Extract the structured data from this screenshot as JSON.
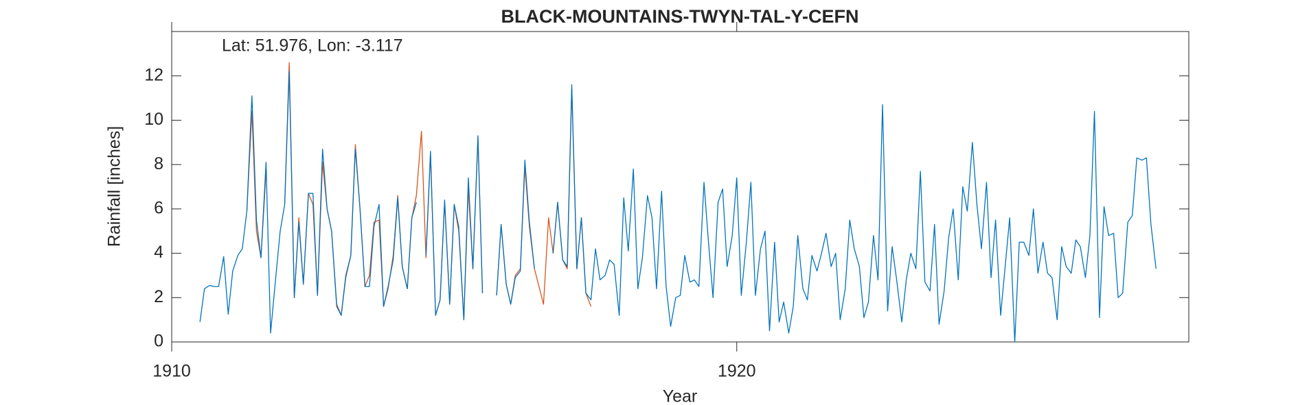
{
  "chart_data": {
    "type": "line",
    "title": "BLACK-MOUNTAINS-TWYN-TAL-Y-CEFN",
    "annotation": "Lat: 51.976, Lon: -3.117",
    "xlabel": "Year",
    "ylabel": "Rainfall [inches]",
    "xlim": [
      1910,
      1928
    ],
    "xticks": [
      1910,
      1920
    ],
    "ylim": [
      0,
      14
    ],
    "yticks": [
      0,
      2,
      4,
      6,
      8,
      10,
      12
    ],
    "series": [
      {
        "color": "#D95319",
        "x": [
          1911,
          1911.08,
          1911.17,
          1911.25,
          1911.33,
          1911.42,
          1911.5,
          1911.58,
          1911.67,
          1911.75,
          1911.83,
          1911.92,
          1912,
          1912.08,
          1912.17,
          1912.25,
          1912.33,
          1912.42,
          1912.5,
          1912.58,
          1912.67,
          1912.75,
          1912.83,
          1912.92,
          1913,
          1913.08,
          1913.17,
          1913.25,
          1913.33,
          1913.42,
          1913.5,
          1913.58,
          1913.67,
          1913.75,
          1913.83,
          1913.92,
          1914,
          1914.08,
          1914.17,
          1914.25,
          1914.33,
          1914.42,
          1914.5,
          1914.58,
          1914.67,
          1914.75,
          1914.83,
          1914.92,
          1915,
          1915.08,
          1915.17,
          1915.25,
          1915.33,
          1915.42,
          1915.5,
          1915.58,
          1915.67,
          1915.75,
          1915.83,
          1915.92,
          1916,
          1916.08,
          1916.17,
          1916.25,
          1916.33,
          1916.42,
          1916.5,
          1916.58,
          1916.67,
          1916.75,
          1916.83,
          1916.92,
          1917,
          1917.08,
          1917.17,
          1917.25,
          1917.33,
          1917.42
        ],
        "values": [
          null,
          null,
          null,
          null,
          5.9,
          10.4,
          5.0,
          3.8,
          7.7,
          null,
          null,
          null,
          6.2,
          12.6,
          2.0,
          5.6,
          2.6,
          6.7,
          6.2,
          2.1,
          8.1,
          6.0,
          5.0,
          1.7,
          1.2,
          3.0,
          3.9,
          8.9,
          6.1,
          2.5,
          3.0,
          5.4,
          5.5,
          1.6,
          2.4,
          3.9,
          6.6,
          3.4,
          2.4,
          5.6,
          6.6,
          9.5,
          3.8,
          8.5,
          1.2,
          1.9,
          6.3,
          1.7,
          6.2,
          5.0,
          1.0,
          6.9,
          3.3,
          9.2,
          2.2,
          null,
          null,
          2.1,
          5.3,
          2.6,
          1.7,
          3.0,
          3.3,
          7.9,
          5.2,
          3.3,
          2.5,
          1.7,
          5.6,
          4.0,
          6.3,
          3.7,
          3.3,
          11.4,
          3.3,
          5.6,
          2.2,
          1.6
        ]
      },
      {
        "color": "#0072BD",
        "x": [
          1910.5,
          1910.58,
          1910.67,
          1910.75,
          1910.83,
          1910.92,
          1911,
          1911.08,
          1911.17,
          1911.25,
          1911.33,
          1911.42,
          1911.5,
          1911.58,
          1911.67,
          1911.75,
          1911.83,
          1911.92,
          1912,
          1912.08,
          1912.17,
          1912.25,
          1912.33,
          1912.42,
          1912.5,
          1912.58,
          1912.67,
          1912.75,
          1912.83,
          1912.92,
          1913,
          1913.08,
          1913.17,
          1913.25,
          1913.33,
          1913.42,
          1913.5,
          1913.58,
          1913.67,
          1913.75,
          1913.83,
          1913.92,
          1914,
          1914.08,
          1914.17,
          1914.25,
          1914.33,
          1914.42,
          1914.5,
          1914.58,
          1914.67,
          1914.75,
          1914.83,
          1914.92,
          1915,
          1915.08,
          1915.17,
          1915.25,
          1915.33,
          1915.42,
          1915.5,
          1915.58,
          1915.67,
          1915.75,
          1915.83,
          1915.92,
          1916,
          1916.08,
          1916.17,
          1916.25,
          1916.33,
          1916.42,
          1916.5,
          1916.58,
          1916.67,
          1916.75,
          1916.83,
          1916.92,
          1917,
          1917.08,
          1917.17,
          1917.25,
          1917.33,
          1917.42,
          1917.5,
          1917.58,
          1917.67,
          1917.75,
          1917.83,
          1917.92,
          1918,
          1918.08,
          1918.17,
          1918.25,
          1918.33,
          1918.42,
          1918.5,
          1918.58,
          1918.67,
          1918.75,
          1918.83,
          1918.92,
          1919,
          1919.08,
          1919.17,
          1919.25,
          1919.33,
          1919.42,
          1919.5,
          1919.58,
          1919.67,
          1919.75,
          1919.83,
          1919.92,
          1920,
          1920.08,
          1920.17,
          1920.25,
          1920.33,
          1920.42,
          1920.5,
          1920.58,
          1920.67,
          1920.75,
          1920.83,
          1920.92,
          1921,
          1921.08,
          1921.17,
          1921.25,
          1921.33,
          1921.42,
          1921.5,
          1921.58,
          1921.67,
          1921.75,
          1921.83,
          1921.92,
          1922,
          1922.08,
          1922.17,
          1922.25,
          1922.33,
          1922.42,
          1922.5,
          1922.58,
          1922.67,
          1922.75,
          1922.83,
          1922.92,
          1923,
          1923.08,
          1923.17,
          1923.25,
          1923.33,
          1923.42,
          1923.5,
          1923.58,
          1923.67,
          1923.75,
          1923.83,
          1923.92,
          1924,
          1924.08,
          1924.17,
          1924.25,
          1924.33,
          1924.42,
          1924.5,
          1924.58,
          1924.67,
          1924.75,
          1924.83,
          1924.92,
          1925,
          1925.08,
          1925.17,
          1925.25,
          1925.33,
          1925.42,
          1925.5,
          1925.58,
          1925.67,
          1925.75,
          1925.83,
          1925.92,
          1926,
          1926.08,
          1926.17,
          1926.25,
          1926.33,
          1926.42,
          1926.5,
          1926.58,
          1926.67,
          1926.75,
          1926.83,
          1926.92,
          1927,
          1927.08,
          1927.17,
          1927.25,
          1927.33,
          1927.42
        ],
        "values": [
          0.9,
          2.4,
          2.55,
          2.5,
          2.5,
          3.85,
          1.25,
          3.2,
          3.9,
          4.2,
          5.9,
          11.1,
          5.5,
          3.8,
          8.1,
          0.4,
          2.6,
          5.0,
          6.2,
          12.2,
          2.0,
          5.4,
          2.6,
          6.7,
          6.7,
          2.1,
          8.7,
          6.0,
          5.0,
          1.6,
          1.2,
          2.9,
          3.9,
          8.7,
          6.1,
          2.5,
          2.5,
          5.2,
          6.2,
          1.6,
          2.5,
          3.7,
          6.5,
          3.4,
          2.4,
          5.6,
          6.3,
          null,
          3.9,
          8.6,
          1.2,
          1.9,
          6.4,
          1.7,
          6.2,
          5.2,
          1.0,
          7.4,
          3.3,
          9.3,
          2.2,
          null,
          null,
          2.1,
          5.3,
          2.6,
          1.7,
          2.9,
          3.2,
          8.2,
          5.4,
          3.3,
          null,
          null,
          null,
          4.0,
          6.3,
          3.7,
          3.4,
          11.6,
          3.3,
          5.6,
          2.2,
          1.9,
          4.2,
          2.8,
          3.0,
          3.7,
          3.5,
          1.2,
          6.5,
          4.1,
          7.8,
          2.4,
          3.8,
          6.6,
          5.6,
          2.4,
          6.8,
          2.5,
          0.7,
          2.0,
          2.1,
          3.9,
          2.7,
          2.8,
          2.5,
          7.2,
          4.5,
          2.0,
          6.3,
          6.9,
          3.4,
          4.8,
          7.4,
          2.1,
          4.5,
          7.2,
          2.1,
          4.2,
          5.0,
          0.5,
          4.5,
          0.9,
          1.8,
          0.4,
          1.6,
          4.8,
          2.4,
          1.9,
          3.9,
          3.2,
          4.0,
          4.9,
          3.4,
          4.0,
          1.0,
          2.4,
          5.5,
          4.2,
          3.4,
          1.1,
          1.8,
          4.8,
          2.8,
          10.7,
          1.4,
          4.3,
          2.8,
          0.9,
          2.8,
          4.0,
          3.3,
          7.7,
          2.7,
          2.3,
          5.3,
          0.8,
          2.3,
          4.7,
          6.0,
          2.8,
          7.0,
          5.9,
          9.0,
          6.2,
          4.2,
          7.2,
          2.9,
          5.5,
          1.2,
          3.4,
          5.6,
          0.0,
          4.5,
          4.5,
          3.9,
          6.0,
          3.1,
          4.5,
          3.1,
          2.9,
          1.0,
          4.3,
          3.4,
          3.1,
          4.6,
          4.3,
          2.9,
          4.8,
          10.4,
          1.1,
          6.1,
          4.8,
          4.9,
          2.0,
          2.2,
          5.4,
          5.7,
          8.3,
          8.2,
          8.3,
          5.3,
          3.3
        ]
      }
    ]
  }
}
